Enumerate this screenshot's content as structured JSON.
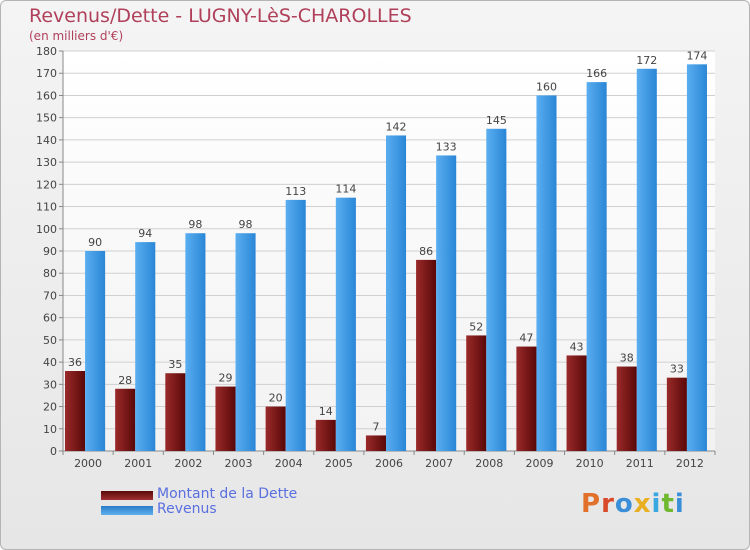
{
  "chart_data": {
    "type": "bar",
    "title": "Revenus/Dette - LUGNY-LèS-CHAROLLES",
    "subtitle": "(en milliers d'€)",
    "categories": [
      "2000",
      "2001",
      "2002",
      "2003",
      "2004",
      "2005",
      "2006",
      "2007",
      "2008",
      "2009",
      "2010",
      "2011",
      "2012"
    ],
    "series": [
      {
        "name": "Montant de la Dette",
        "color": "#7a1010",
        "values": [
          36,
          28,
          35,
          29,
          20,
          14,
          7,
          86,
          52,
          47,
          43,
          38,
          33
        ]
      },
      {
        "name": "Revenus",
        "color": "#3d9de6",
        "values": [
          90,
          94,
          98,
          98,
          113,
          114,
          142,
          133,
          145,
          160,
          166,
          172,
          174
        ]
      }
    ],
    "ylim": [
      0,
      180
    ],
    "ytick_step": 10,
    "grid": true,
    "legend_position": "bottom-left"
  },
  "logo": {
    "text": "Proxiti",
    "colors": [
      "#e0702a",
      "#d84a2a",
      "#3a8fd8",
      "#e8b020",
      "#3aa8e0",
      "#70b830",
      "#3a8fd8"
    ]
  }
}
